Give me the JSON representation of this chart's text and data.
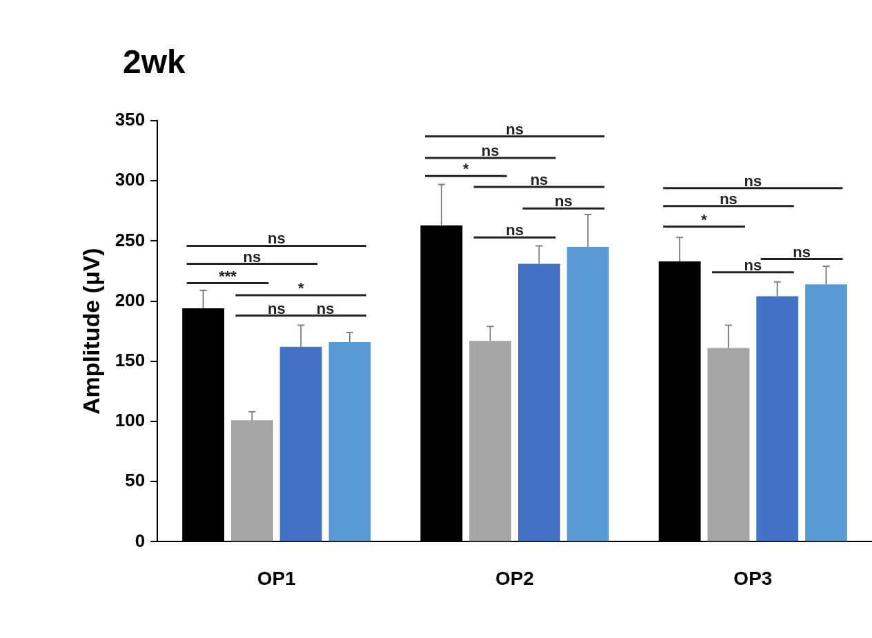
{
  "chart_data": {
    "type": "bar",
    "title": "2wk",
    "ylabel": "Amplitude (μV)",
    "categories": [
      "OP1",
      "OP2",
      "OP3"
    ],
    "series": [
      {
        "color": "#000000",
        "values": [
          194,
          263,
          233
        ],
        "errors": [
          15,
          34,
          20
        ]
      },
      {
        "color": "#a5a5a5",
        "values": [
          101,
          167,
          161
        ],
        "errors": [
          7,
          12,
          19
        ]
      },
      {
        "color": "#4472c4",
        "values": [
          162,
          231,
          204
        ],
        "errors": [
          18,
          15,
          12
        ]
      },
      {
        "color": "#5b9bd5",
        "values": [
          166,
          245,
          214
        ],
        "errors": [
          8,
          27,
          15
        ]
      }
    ],
    "ylim": [
      0,
      350
    ],
    "yticks": [
      0,
      50,
      100,
      150,
      200,
      250,
      300,
      350
    ],
    "grid": false,
    "legend": false,
    "annotations": [
      "ns",
      "ns",
      "***",
      "*",
      "ns",
      "ns",
      "ns",
      "ns",
      "*",
      "ns",
      "ns",
      "ns",
      "ns",
      "ns",
      "*",
      "ns",
      "ns"
    ]
  }
}
